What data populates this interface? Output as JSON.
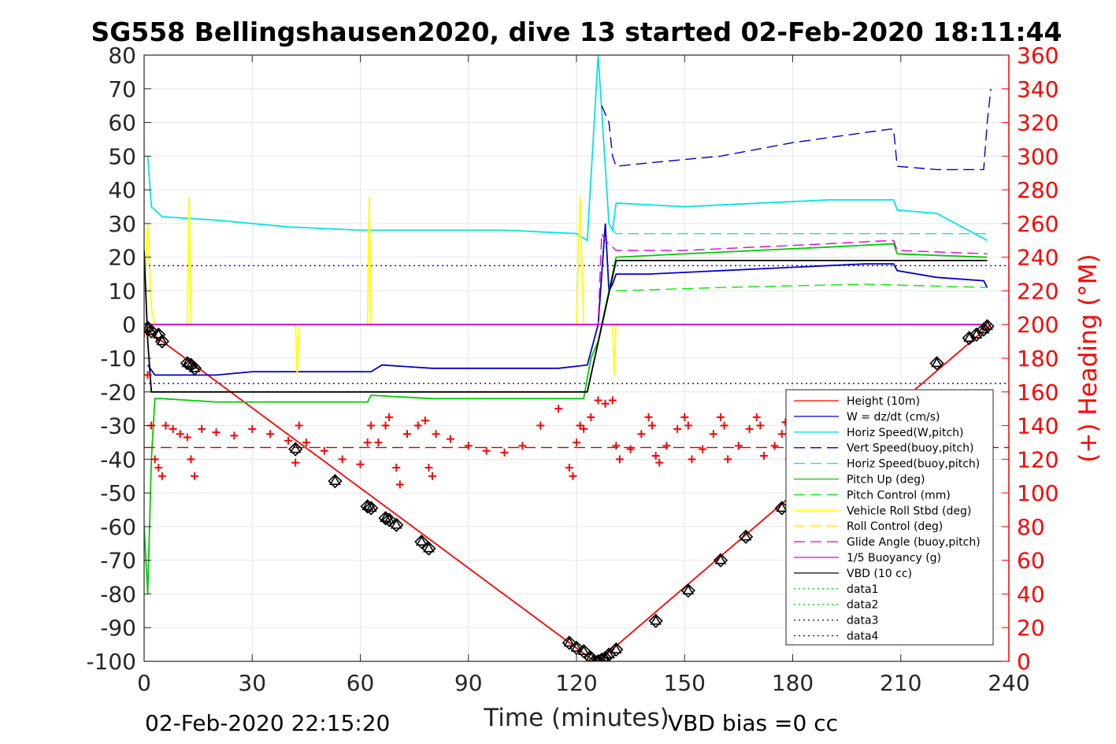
{
  "chart_data": {
    "type": "line",
    "title": "SG558 Bellingshausen2020, dive 13 started 02-Feb-2020 18:11:44",
    "xlabel": "Time (minutes)",
    "ylabel": "",
    "y2label": "(+) Heading (°M)",
    "xlim": [
      0,
      240
    ],
    "ylim": [
      -100,
      80
    ],
    "y2lim": [
      0,
      360
    ],
    "xticks": [
      "0",
      "30",
      "60",
      "90",
      "120",
      "150",
      "180",
      "210",
      "240"
    ],
    "yticks": [
      "80",
      "70",
      "60",
      "50",
      "40",
      "30",
      "20",
      "10",
      "0",
      "-10",
      "-20",
      "-30",
      "-40",
      "-50",
      "-60",
      "-70",
      "-80",
      "-90",
      "-100"
    ],
    "y2ticks": [
      "360",
      "340",
      "320",
      "300",
      "280",
      "260",
      "240",
      "220",
      "200",
      "180",
      "160",
      "140",
      "120",
      "100",
      "80",
      "60",
      "40",
      "20",
      "0"
    ],
    "grid": true,
    "legend_position": "lower-right",
    "footer_left": "02-Feb-2020 22:15:20",
    "footer_right": "VBD bias =0 cc",
    "series": [
      {
        "name": "Height (10m)",
        "color": "#ff0000",
        "style": "solid",
        "x": [
          0,
          125,
          126,
          235
        ],
        "y": [
          -1,
          -100,
          -100,
          0
        ]
      },
      {
        "name": "W = dz/dt (cm/s)",
        "color": "#0000cc",
        "style": "solid",
        "x": [
          1,
          3,
          10,
          20,
          30,
          45,
          55,
          63,
          66,
          80,
          100,
          115,
          123,
          126,
          128,
          129,
          130,
          131,
          140,
          160,
          180,
          200,
          208,
          209,
          220,
          233,
          234
        ],
        "y": [
          -12,
          -15,
          -15,
          -15,
          -14,
          -14,
          -14,
          -14,
          -12,
          -13,
          -13,
          -13,
          -12,
          0,
          30,
          10,
          12,
          15,
          15,
          16,
          17,
          18,
          18,
          16,
          14,
          13,
          11
        ]
      },
      {
        "name": "Horiz Speed(W,pitch)",
        "color": "#00e5e5",
        "style": "solid",
        "x": [
          1,
          2,
          5,
          20,
          40,
          60,
          80,
          100,
          120,
          123,
          126,
          129,
          130,
          131,
          132,
          150,
          170,
          190,
          200,
          208,
          209,
          220,
          234
        ],
        "y": [
          50,
          35,
          32,
          31,
          29,
          28,
          28,
          28,
          27,
          25,
          80,
          30,
          28,
          36,
          36,
          35,
          36,
          37,
          37,
          37,
          34,
          33,
          25
        ]
      },
      {
        "name": "Vert Speed(buoy,pitch)",
        "color": "#0000cc",
        "style": "dashed",
        "x": [
          127,
          129,
          130,
          131,
          140,
          160,
          180,
          200,
          207,
          208,
          209,
          220,
          233,
          234,
          235
        ],
        "y": [
          65,
          60,
          50,
          47,
          48,
          50,
          54,
          57,
          58,
          58,
          47,
          46,
          46,
          60,
          70
        ]
      },
      {
        "name": "Horiz Speed(buoy,pitch)",
        "color": "#00e5e5",
        "style": "dashed",
        "x": [
          130,
          131,
          234
        ],
        "y": [
          28,
          27,
          27
        ]
      },
      {
        "name": "Pitch Up (deg)",
        "color": "#00cc00",
        "style": "solid",
        "x": [
          0,
          1,
          2,
          3,
          5,
          20,
          40,
          62,
          63,
          80,
          100,
          122,
          124,
          126,
          129,
          131,
          150,
          170,
          190,
          208,
          209,
          234
        ],
        "y": [
          -60,
          -80,
          -40,
          -22,
          -22,
          -23,
          -23,
          -23,
          -21,
          -22,
          -22,
          -22,
          -10,
          -5,
          10,
          20,
          21,
          22,
          23,
          24,
          21,
          20
        ]
      },
      {
        "name": "Pitch Control (mm)",
        "color": "#00ee00",
        "style": "dashed",
        "x": [
          131,
          160,
          200,
          234
        ],
        "y": [
          10,
          11,
          12,
          11
        ]
      },
      {
        "name": "Vehicle Roll Stbd (deg)",
        "color": "#ffff00",
        "style": "solid",
        "x": [
          0,
          1,
          2,
          3,
          4,
          12,
          12.5,
          13,
          14,
          20,
          40,
          42,
          42.5,
          43,
          60,
          62,
          62.5,
          63,
          80,
          100,
          120,
          121,
          122,
          123,
          126,
          130,
          130.5,
          131,
          150,
          170,
          190,
          210,
          230,
          234
        ],
        "y": [
          10,
          30,
          5,
          0,
          0,
          0,
          38,
          0,
          0,
          0,
          0,
          0,
          -15,
          0,
          0,
          0,
          38,
          0,
          0,
          0,
          0,
          38,
          0,
          0,
          0,
          0,
          -15,
          0,
          0,
          0,
          0,
          0,
          0,
          0
        ]
      },
      {
        "name": "Roll Control (deg)",
        "color": "#ffee00",
        "style": "dashed",
        "x": [
          0,
          234
        ],
        "y": [
          0,
          0
        ]
      },
      {
        "name": "Glide Angle (buoy,pitch)",
        "color": "#dd00dd",
        "style": "dashed",
        "x": [
          0,
          125,
          126,
          127,
          128,
          131,
          150,
          170,
          190,
          208,
          209,
          234
        ],
        "y": [
          0,
          0,
          0,
          27,
          25,
          22,
          22,
          23,
          24,
          25,
          22,
          21
        ]
      },
      {
        "name": "1/5 Buoyancy (g)",
        "color": "#dd00dd",
        "style": "solid",
        "x": [
          0,
          125,
          126,
          234
        ],
        "y": [
          0,
          0,
          0,
          0
        ]
      },
      {
        "name": "VBD (10 cc)",
        "color": "#000000",
        "style": "solid",
        "x": [
          0,
          1,
          2,
          123,
          131,
          234
        ],
        "y": [
          22,
          -5,
          -20,
          -20,
          19,
          19
        ]
      },
      {
        "name": "data1",
        "color": "#00dd00",
        "style": "dotted",
        "x": [],
        "y": []
      },
      {
        "name": "data2",
        "color": "#00dd00",
        "style": "dotted",
        "x": [],
        "y": []
      },
      {
        "name": "data3",
        "color": "#000099",
        "style": "dotted",
        "x": [
          0,
          240
        ],
        "y": [
          17.5,
          17.5
        ]
      },
      {
        "name": "data4",
        "color": "#000099",
        "style": "dotted",
        "x": [
          0,
          240
        ],
        "y": [
          -17.5,
          -17.5
        ]
      },
      {
        "name": "",
        "color": "#cc0000",
        "style": "dashed",
        "axis": "right",
        "x": [
          0,
          240
        ],
        "y": [
          127,
          127
        ]
      },
      {
        "name": "",
        "color": "#ff0000",
        "style": "markers-plus",
        "axis": "right",
        "x": [
          0,
          1,
          2,
          3,
          4,
          5,
          6,
          8,
          10,
          12,
          13,
          14,
          16,
          20,
          25,
          30,
          35,
          40,
          42,
          43,
          45,
          50,
          55,
          60,
          62,
          63,
          65,
          67,
          68,
          70,
          71,
          73,
          76,
          78,
          79,
          80,
          81,
          85,
          90,
          95,
          100,
          105,
          110,
          115,
          118,
          119,
          120,
          121,
          122,
          124,
          126,
          128,
          130,
          131,
          132,
          135,
          138,
          140,
          141,
          142,
          143,
          145,
          148,
          150,
          151,
          152,
          155,
          158,
          160,
          161,
          162,
          165,
          168,
          170,
          171,
          172,
          175,
          177,
          178,
          179,
          180,
          185,
          188,
          190,
          191,
          195,
          200,
          205,
          210,
          215,
          220,
          225,
          230,
          233,
          234
        ],
        "y": [
          195,
          170,
          140,
          120,
          115,
          110,
          140,
          138,
          135,
          133,
          120,
          110,
          138,
          136,
          134,
          138,
          135,
          131,
          118,
          140,
          130,
          125,
          120,
          117,
          130,
          140,
          130,
          140,
          145,
          115,
          105,
          135,
          140,
          143,
          115,
          110,
          135,
          132,
          128,
          125,
          124,
          128,
          140,
          150,
          115,
          110,
          130,
          140,
          138,
          145,
          155,
          153,
          155,
          128,
          120,
          126,
          135,
          145,
          140,
          122,
          118,
          128,
          138,
          145,
          140,
          120,
          126,
          135,
          145,
          140,
          120,
          128,
          138,
          145,
          140,
          122,
          128,
          135,
          142,
          120,
          118,
          125,
          135,
          142,
          120,
          122,
          125,
          125,
          125,
          125,
          125,
          130,
          135,
          140,
          130
        ]
      },
      {
        "name": "",
        "color": "#000000",
        "style": "markers-diamond",
        "x": [
          1,
          2,
          4,
          5,
          12,
          13,
          14,
          42,
          53,
          62,
          63,
          67,
          68,
          70,
          77,
          79,
          118,
          120,
          122,
          124,
          125,
          126,
          127,
          128,
          129,
          131,
          142,
          151,
          160,
          167,
          177,
          220,
          229,
          231,
          233,
          234
        ],
        "y": [
          -1,
          -2,
          -3,
          -5,
          -11.5,
          -12,
          -13,
          -37,
          -46.5,
          -54,
          -54.5,
          -57.5,
          -58,
          -59.5,
          -64.5,
          -66.5,
          -94.5,
          -96,
          -97,
          -99,
          -100,
          -100,
          -99.5,
          -99,
          -98,
          -96.5,
          -88,
          -79,
          -70,
          -63,
          -54.5,
          -11.5,
          -4,
          -3,
          -1.5,
          -0.5
        ]
      }
    ]
  }
}
